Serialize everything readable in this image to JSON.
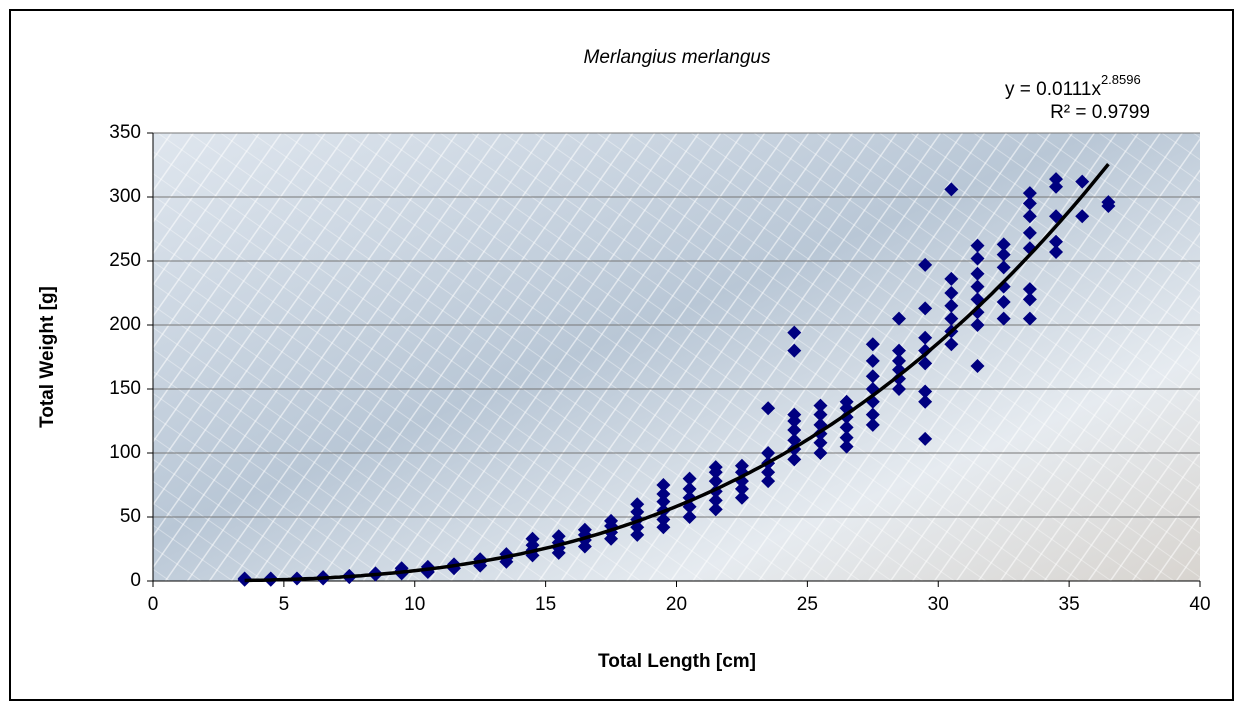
{
  "chart_data": {
    "type": "scatter",
    "title": "Merlangius merlangus",
    "x_label": "Total Length [cm]",
    "y_label": "Total Weight [g]",
    "xlim": [
      0,
      40
    ],
    "ylim": [
      0,
      350
    ],
    "xticks": [
      0,
      5,
      10,
      15,
      20,
      25,
      30,
      35,
      40
    ],
    "yticks": [
      0,
      50,
      100,
      150,
      200,
      250,
      300,
      350
    ],
    "grid": true,
    "series": [
      {
        "color": "#000080",
        "x": [
          3.5,
          3.5,
          4.5,
          4.5,
          5.5,
          6.5,
          6.5,
          7.5,
          7.5,
          8.5,
          8.5,
          9.5,
          9.5,
          9.5,
          10.5,
          10.5,
          10.5,
          11.5,
          11.5,
          12.5,
          12.5,
          12.5,
          13.5,
          13.5,
          13.5,
          14.5,
          14.5,
          14.5,
          14.5,
          15.5,
          15.5,
          15.5,
          15.5,
          16.5,
          16.5,
          16.5,
          16.5,
          17.5,
          17.5,
          17.5,
          17.5,
          18.5,
          18.5,
          18.5,
          18.5,
          18.5,
          19.5,
          19.5,
          19.5,
          19.5,
          19.5,
          19.5,
          20.5,
          20.5,
          20.5,
          20.5,
          20.5,
          21.5,
          21.5,
          21.5,
          21.5,
          21.5,
          21.5,
          22.5,
          22.5,
          22.5,
          22.5,
          22.5,
          23.5,
          23.5,
          23.5,
          23.5,
          23.5,
          24.5,
          24.5,
          24.5,
          24.5,
          24.5,
          24.5,
          24.5,
          24.5,
          25.5,
          25.5,
          25.5,
          25.5,
          25.5,
          25.5,
          26.5,
          26.5,
          26.5,
          26.5,
          26.5,
          26.5,
          27.5,
          27.5,
          27.5,
          27.5,
          27.5,
          27.5,
          27.5,
          28.5,
          28.5,
          28.5,
          28.5,
          28.5,
          28.5,
          29.5,
          29.5,
          29.5,
          29.5,
          29.5,
          29.5,
          29.5,
          29.5,
          30.5,
          30.5,
          30.5,
          30.5,
          30.5,
          30.5,
          30.5,
          31.5,
          31.5,
          31.5,
          31.5,
          31.5,
          31.5,
          31.5,
          31.5,
          32.5,
          32.5,
          32.5,
          32.5,
          32.5,
          32.5,
          33.5,
          33.5,
          33.5,
          33.5,
          33.5,
          33.5,
          33.5,
          33.5,
          34.5,
          34.5,
          34.5,
          34.5,
          34.5,
          35.5,
          35.5,
          36.5,
          36.5
        ],
        "values": [
          1,
          2,
          1,
          2,
          2,
          2,
          3,
          3,
          4,
          5,
          6,
          6,
          8,
          10,
          7,
          9,
          11,
          10,
          13,
          12,
          15,
          17,
          15,
          18,
          21,
          20,
          24,
          28,
          33,
          22,
          26,
          30,
          35,
          27,
          32,
          36,
          40,
          33,
          38,
          43,
          47,
          36,
          42,
          48,
          54,
          60,
          42,
          48,
          55,
          62,
          68,
          75,
          50,
          58,
          65,
          72,
          80,
          56,
          63,
          70,
          78,
          85,
          89,
          65,
          72,
          78,
          85,
          90,
          78,
          85,
          92,
          100,
          135,
          95,
          103,
          110,
          118,
          125,
          130,
          180,
          194,
          100,
          108,
          115,
          122,
          130,
          137,
          105,
          112,
          120,
          128,
          135,
          140,
          122,
          130,
          140,
          150,
          160,
          172,
          185,
          150,
          158,
          165,
          172,
          180,
          205,
          111,
          140,
          148,
          170,
          180,
          190,
          213,
          247,
          185,
          195,
          205,
          215,
          225,
          236,
          306,
          168,
          200,
          210,
          220,
          230,
          240,
          252,
          262,
          205,
          218,
          230,
          245,
          255,
          263,
          205,
          220,
          228,
          260,
          272,
          285,
          295,
          303,
          257,
          265,
          285,
          308,
          314,
          285,
          312,
          293,
          296
        ]
      }
    ],
    "trendline": {
      "coefficient": 0.0111,
      "exponent": 2.8596,
      "r_squared": 0.9799,
      "color": "#000000",
      "equation_label": "y = 0.0111x",
      "exponent_label": "2.8596",
      "r_squared_label": "R² = 0.9799"
    }
  }
}
